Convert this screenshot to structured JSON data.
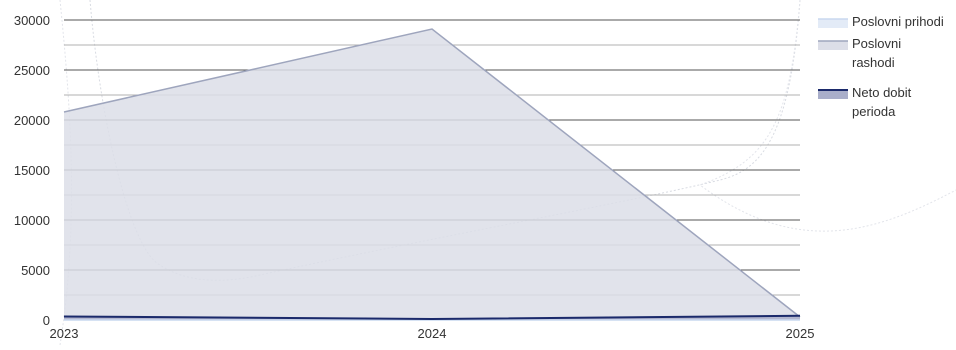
{
  "chart_data": {
    "type": "area",
    "categories": [
      "2023",
      "2024",
      "2025"
    ],
    "ylim": [
      0,
      30000
    ],
    "yticks": [
      0,
      5000,
      10000,
      15000,
      20000,
      25000,
      30000
    ],
    "ytick_labels": [
      "0",
      "5000",
      "10000",
      "15000",
      "20000",
      "25000",
      "30000"
    ],
    "grid": true,
    "legend_position": "right",
    "series": [
      {
        "name": "Poslovni prihodi",
        "values": [
          0,
          0,
          0
        ],
        "fill": "#e3ebf7",
        "stroke": "#c9d8ef"
      },
      {
        "name": "Poslovni rashodi",
        "values": [
          20800,
          29100,
          300
        ],
        "fill": "#dcdee8",
        "stroke": "#9ea5bd"
      },
      {
        "name": "Neto dobit perioda",
        "values": [
          350,
          100,
          420
        ],
        "fill": "#a9aeca",
        "stroke": "#1b2a6b"
      }
    ]
  }
}
